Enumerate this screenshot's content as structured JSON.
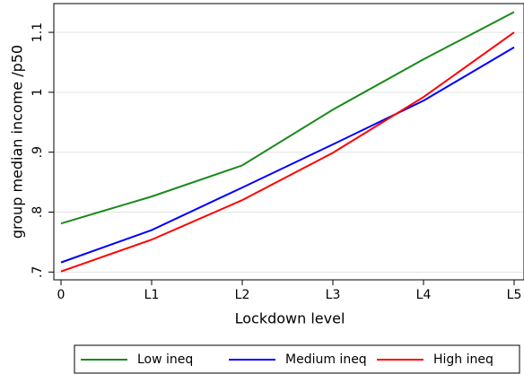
{
  "chart_data": {
    "type": "line",
    "x_label": "Lockdown level",
    "y_label": "group median income /p50",
    "categories": [
      "0",
      "L1",
      "L2",
      "L3",
      "L4",
      "L5"
    ],
    "series": [
      {
        "name": "Low ineq",
        "color": "#1a8a1a",
        "values": [
          0.781,
          0.826,
          0.878,
          0.971,
          1.055,
          1.134
        ]
      },
      {
        "name": "Medium ineq",
        "color": "#0000ff",
        "values": [
          0.716,
          0.77,
          0.841,
          0.913,
          0.986,
          1.075
        ]
      },
      {
        "name": "High ineq",
        "color": "#ff0000",
        "values": [
          0.701,
          0.754,
          0.82,
          0.899,
          0.992,
          1.1
        ]
      }
    ],
    "ylim": [
      0.687,
      1.148
    ],
    "yticks": [
      {
        "value": 0.7,
        "label": ".7"
      },
      {
        "value": 0.8,
        "label": ".8"
      },
      {
        "value": 0.9,
        "label": ".9"
      },
      1,
      1.1
    ],
    "grid": true,
    "legend": "bottom"
  }
}
